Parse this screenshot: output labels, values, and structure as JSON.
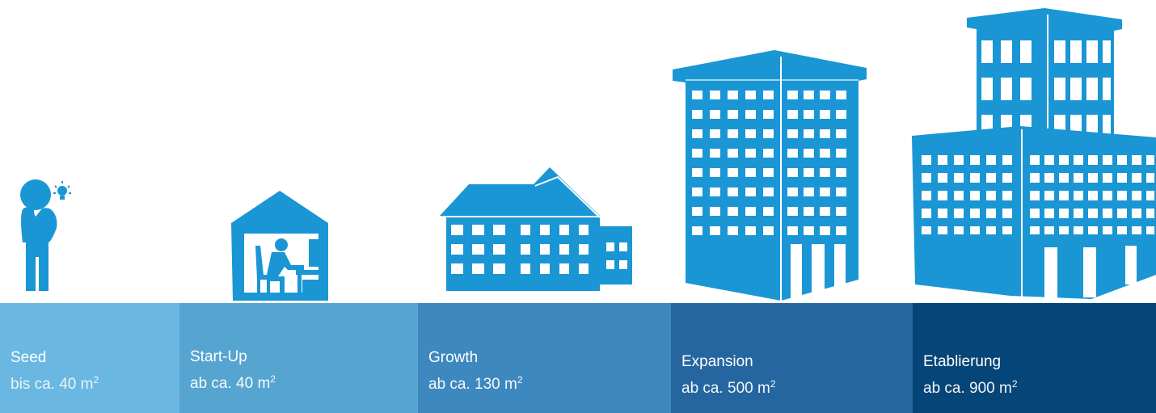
{
  "colors": {
    "icon": "#1a96d4",
    "stages": [
      "#6ab8e2",
      "#56a5d1",
      "#3d88be",
      "#2566a0",
      "#064577"
    ]
  },
  "icons": [
    "thinking-person-icon",
    "garage-office-icon",
    "house-icon",
    "office-tower-icon",
    "corporate-complex-icon"
  ],
  "stages": [
    {
      "name": "Seed",
      "prefix": "bis ca. 40 m",
      "unit_sup": "2"
    },
    {
      "name": "Start-Up",
      "prefix": "ab ca. 40 m",
      "unit_sup": "2"
    },
    {
      "name": "Growth",
      "prefix": "ab ca. 130 m",
      "unit_sup": "2"
    },
    {
      "name": "Expansion",
      "prefix": "ab ca. 500 m",
      "unit_sup": "2"
    },
    {
      "name": "Etablierung",
      "prefix": "ab ca. 900 m",
      "unit_sup": "2"
    }
  ]
}
